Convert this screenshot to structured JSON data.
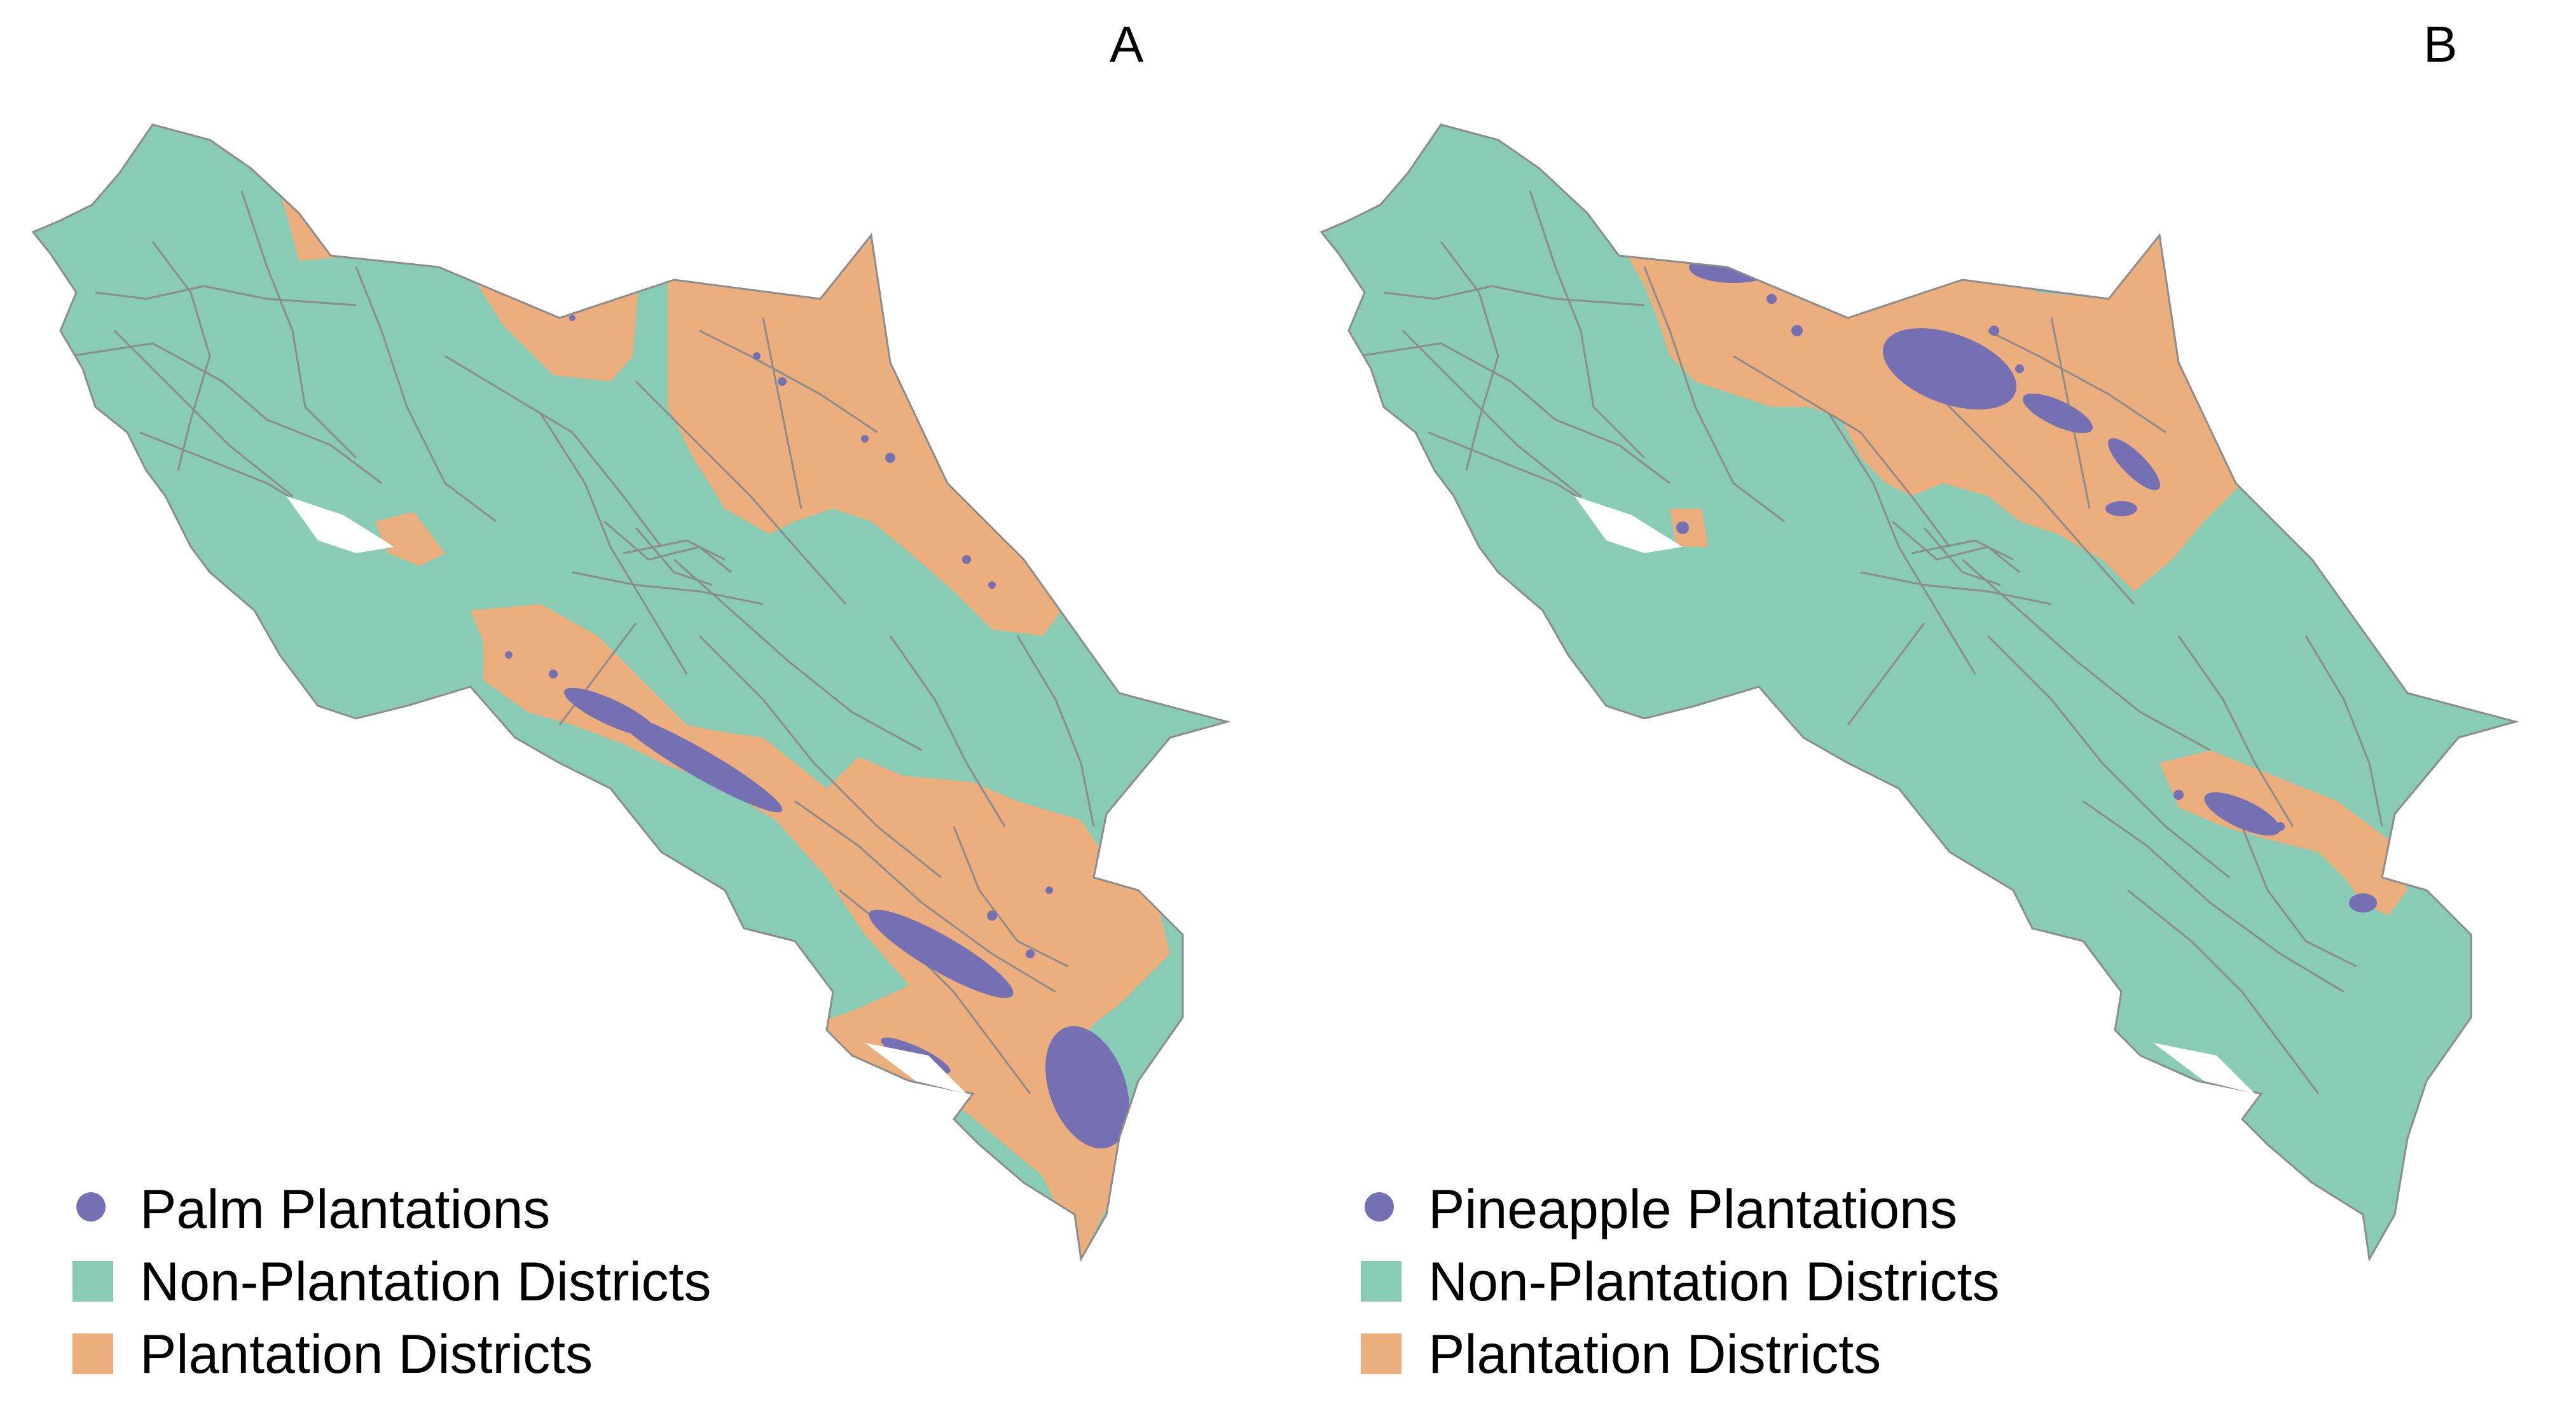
{
  "colors": {
    "non_plantation": "#88CCB5",
    "plantation": "#EDAE7E",
    "plantations_dot": "#7570B3",
    "boundary": "#8C8C8C"
  },
  "panels": [
    {
      "letter": "A",
      "legend": {
        "plantations": "Palm Plantations",
        "non_plantation": "Non-Plantation Districts",
        "plantation": "Plantation Districts"
      }
    },
    {
      "letter": "B",
      "legend": {
        "plantations": "Pineapple Plantations",
        "non_plantation": "Non-Plantation Districts",
        "plantation": "Plantation Districts"
      }
    }
  ]
}
